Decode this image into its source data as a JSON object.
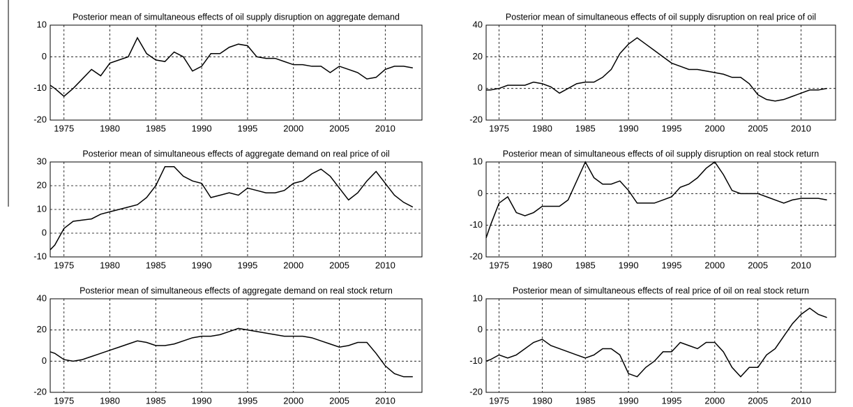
{
  "chart_data": [
    {
      "type": "line",
      "title": "Posterior mean of simultaneous effects of oil supply disruption on aggregate demand",
      "x": [
        1973.5,
        1974,
        1975,
        1976,
        1977,
        1978,
        1979,
        1980,
        1981,
        1982,
        1983,
        1984,
        1985,
        1986,
        1987,
        1988,
        1989,
        1990,
        1991,
        1992,
        1993,
        1994,
        1995,
        1996,
        1997,
        1998,
        1999,
        2000,
        2001,
        2002,
        2003,
        2004,
        2005,
        2006,
        2007,
        2008,
        2009,
        2010,
        2011,
        2012,
        2013
      ],
      "series": [
        {
          "color": "#000000",
          "values": [
            -9,
            -10,
            -12.5,
            -10,
            -7,
            -4,
            -6,
            -2,
            -1,
            0,
            6,
            1,
            -1,
            -1.5,
            1.5,
            0,
            -4.5,
            -3,
            1,
            1,
            3,
            4,
            3.5,
            0,
            -0.5,
            -0.5,
            -1.5,
            -2.5,
            -2.5,
            -3,
            -3,
            -5,
            -3,
            -4,
            -5,
            -7,
            -6.5,
            -4,
            -3,
            -3,
            -3.5
          ]
        }
      ],
      "xlim": [
        1973.5,
        2014
      ],
      "xticks": [
        1975,
        1980,
        1985,
        1990,
        1995,
        2000,
        2005,
        2010
      ],
      "ylim": [
        -20,
        10
      ],
      "yticks": [
        -20,
        -10,
        0,
        10
      ],
      "grid": true
    },
    {
      "type": "line",
      "title": "Posterior mean of simultaneous effects of oil supply disruption on real price of oil",
      "x": [
        1973.5,
        1974,
        1975,
        1976,
        1977,
        1978,
        1979,
        1980,
        1981,
        1982,
        1983,
        1984,
        1985,
        1986,
        1987,
        1988,
        1989,
        1990,
        1991,
        1992,
        1993,
        1994,
        1995,
        1996,
        1997,
        1998,
        1999,
        2000,
        2001,
        2002,
        2003,
        2004,
        2005,
        2006,
        2007,
        2008,
        2009,
        2010,
        2011,
        2012,
        2013
      ],
      "series": [
        {
          "color": "#000000",
          "values": [
            -1,
            -1,
            0,
            2,
            2,
            2,
            4,
            3,
            1,
            -3,
            0,
            3,
            4,
            4,
            7,
            12,
            22,
            28,
            32,
            28,
            24,
            20,
            16,
            14,
            12,
            12,
            11,
            10,
            9,
            7,
            7,
            3,
            -4,
            -7,
            -8,
            -7,
            -5,
            -3,
            -1,
            -1,
            0
          ]
        }
      ],
      "xlim": [
        1973.5,
        2014
      ],
      "xticks": [
        1975,
        1980,
        1985,
        1990,
        1995,
        2000,
        2005,
        2010
      ],
      "ylim": [
        -20,
        40
      ],
      "yticks": [
        -20,
        0,
        20,
        40
      ],
      "grid": true
    },
    {
      "type": "line",
      "title": "Posterior mean of simultaneous effects of aggregate demand on real price of oil",
      "x": [
        1973.5,
        1974,
        1975,
        1976,
        1977,
        1978,
        1979,
        1980,
        1981,
        1982,
        1983,
        1984,
        1985,
        1986,
        1987,
        1988,
        1989,
        1990,
        1991,
        1992,
        1993,
        1994,
        1995,
        1996,
        1997,
        1998,
        1999,
        2000,
        2001,
        2002,
        2003,
        2004,
        2005,
        2006,
        2007,
        2008,
        2009,
        2010,
        2011,
        2012,
        2013
      ],
      "series": [
        {
          "color": "#000000",
          "values": [
            -7,
            -5,
            2,
            5,
            5.5,
            6,
            8,
            9,
            10,
            11,
            12,
            15,
            20,
            28,
            28,
            24,
            22,
            21,
            15,
            16,
            17,
            16,
            19,
            18,
            17,
            17,
            18,
            21,
            22,
            25,
            27,
            24,
            19,
            14,
            17,
            22,
            26,
            21,
            16,
            13,
            11
          ]
        }
      ],
      "xlim": [
        1973.5,
        2014
      ],
      "xticks": [
        1975,
        1980,
        1985,
        1990,
        1995,
        2000,
        2005,
        2010
      ],
      "ylim": [
        -10,
        30
      ],
      "yticks": [
        -10,
        0,
        10,
        20,
        30
      ],
      "grid": true
    },
    {
      "type": "line",
      "title": "Posterior mean of simultaneous effects of oil supply disruption on real stock return",
      "x": [
        1973.5,
        1974,
        1975,
        1976,
        1977,
        1978,
        1979,
        1980,
        1981,
        1982,
        1983,
        1984,
        1985,
        1986,
        1987,
        1988,
        1989,
        1990,
        1991,
        1992,
        1993,
        1994,
        1995,
        1996,
        1997,
        1998,
        1999,
        2000,
        2001,
        2002,
        2003,
        2004,
        2005,
        2006,
        2007,
        2008,
        2009,
        2010,
        2011,
        2012,
        2013
      ],
      "series": [
        {
          "color": "#000000",
          "values": [
            -14,
            -10,
            -3,
            -1,
            -6,
            -7,
            -6,
            -4,
            -4,
            -4,
            -2,
            4,
            10,
            5,
            3,
            3,
            4,
            1,
            -3,
            -3,
            -3,
            -2,
            -1,
            2,
            3,
            5,
            8,
            10,
            6,
            1,
            0,
            0,
            0,
            -1,
            -2,
            -3,
            -2,
            -1.5,
            -1.5,
            -1.5,
            -2
          ]
        }
      ],
      "xlim": [
        1973.5,
        2014
      ],
      "xticks": [
        1975,
        1980,
        1985,
        1990,
        1995,
        2000,
        2005,
        2010
      ],
      "ylim": [
        -20,
        10
      ],
      "yticks": [
        -20,
        -10,
        0,
        10
      ],
      "grid": true
    },
    {
      "type": "line",
      "title": "Posterior mean of simultaneous effects of aggregate demand on real stock return",
      "x": [
        1973.5,
        1974,
        1975,
        1976,
        1977,
        1978,
        1979,
        1980,
        1981,
        1982,
        1983,
        1984,
        1985,
        1986,
        1987,
        1988,
        1989,
        1990,
        1991,
        1992,
        1993,
        1994,
        1995,
        1996,
        1997,
        1998,
        1999,
        2000,
        2001,
        2002,
        2003,
        2004,
        2005,
        2006,
        2007,
        2008,
        2009,
        2010,
        2011,
        2012,
        2013
      ],
      "series": [
        {
          "color": "#000000",
          "values": [
            6,
            5,
            1,
            0,
            1,
            3,
            5,
            7,
            9,
            11,
            13,
            12,
            10,
            10,
            11,
            13,
            15,
            16,
            16,
            17,
            19,
            21,
            20,
            19,
            18,
            17,
            16,
            16,
            16,
            15,
            13,
            11,
            9,
            10,
            12,
            12,
            5,
            -3,
            -8,
            -10,
            -10
          ]
        }
      ],
      "xlim": [
        1973.5,
        2014
      ],
      "xticks": [
        1975,
        1980,
        1985,
        1990,
        1995,
        2000,
        2005,
        2010
      ],
      "ylim": [
        -20,
        40
      ],
      "yticks": [
        -20,
        0,
        20,
        40
      ],
      "grid": true
    },
    {
      "type": "line",
      "title": "Posterior mean of simultaneous effects of real price of oil on real stock return",
      "x": [
        1973.5,
        1974,
        1975,
        1976,
        1977,
        1978,
        1979,
        1980,
        1981,
        1982,
        1983,
        1984,
        1985,
        1986,
        1987,
        1988,
        1989,
        1990,
        1991,
        1992,
        1993,
        1994,
        1995,
        1996,
        1997,
        1998,
        1999,
        2000,
        2001,
        2002,
        2003,
        2004,
        2005,
        2006,
        2007,
        2008,
        2009,
        2010,
        2011,
        2012,
        2013
      ],
      "series": [
        {
          "color": "#000000",
          "values": [
            -10,
            -9.5,
            -8,
            -9,
            -8,
            -6,
            -4,
            -3,
            -5,
            -6,
            -7,
            -8,
            -9,
            -8,
            -6,
            -6,
            -8,
            -14,
            -15,
            -12,
            -10,
            -7,
            -7,
            -4,
            -5,
            -6,
            -4,
            -4,
            -7,
            -12,
            -15,
            -12,
            -12,
            -8,
            -6,
            -2,
            2,
            5,
            7,
            5,
            4
          ]
        }
      ],
      "xlim": [
        1973.5,
        2014
      ],
      "xticks": [
        1975,
        1980,
        1985,
        1990,
        1995,
        2000,
        2005,
        2010
      ],
      "ylim": [
        -20,
        10
      ],
      "yticks": [
        -20,
        -10,
        0,
        10
      ],
      "grid": true
    }
  ]
}
